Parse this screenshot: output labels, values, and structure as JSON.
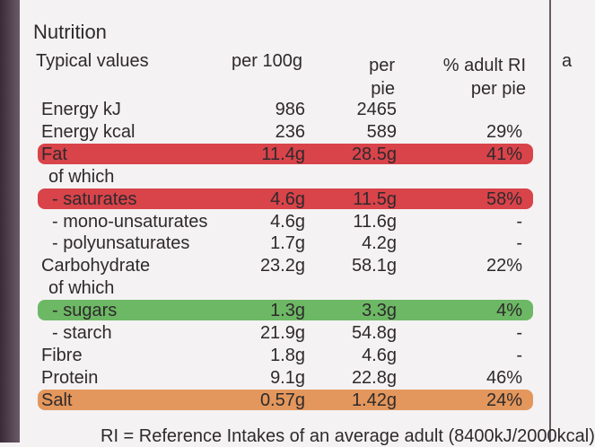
{
  "title": "Nutrition",
  "header": {
    "label": "Typical values",
    "per_100g": "per 100g",
    "per_pie": "per pie",
    "ri": "% adult RI per pie",
    "cut": "a"
  },
  "rows": [
    {
      "label": "Energy kJ",
      "per_100g": "986",
      "per_pie": "2465"
    },
    {
      "label": "Energy kcal",
      "per_100g": "236",
      "per_pie": "589",
      "ri": "29%"
    },
    {
      "label": "Fat",
      "per_100g": "11.4g",
      "per_pie": "28.5g",
      "ri": "41%",
      "highlight": "#d9434a"
    },
    {
      "label": "of which"
    },
    {
      "label": "- saturates",
      "per_100g": "4.6g",
      "per_pie": "11.5g",
      "ri": "58%",
      "highlight": "#d9434a"
    },
    {
      "label": "- mono-unsaturates",
      "per_100g": "4.6g",
      "per_pie": "11.6g",
      "ri": "-"
    },
    {
      "label": "- polyunsaturates",
      "per_100g": "1.7g",
      "per_pie": "4.2g",
      "ri": "-"
    },
    {
      "label": "Carbohydrate",
      "per_100g": "23.2g",
      "per_pie": "58.1g",
      "ri": "22%"
    },
    {
      "label": "of which"
    },
    {
      "label": "- sugars",
      "per_100g": "1.3g",
      "per_pie": "3.3g",
      "ri": "4%",
      "highlight": "#6db865"
    },
    {
      "label": "- starch",
      "per_100g": "21.9g",
      "per_pie": "54.8g",
      "ri": "-"
    },
    {
      "label": "Fibre",
      "per_100g": "1.8g",
      "per_pie": "4.6g",
      "ri": "-"
    },
    {
      "label": "Protein",
      "per_100g": "9.1g",
      "per_pie": "22.8g",
      "ri": "46%"
    },
    {
      "label": "Salt",
      "per_100g": "0.57g",
      "per_pie": "1.42g",
      "ri": "24%",
      "highlight": "#e3975c"
    }
  ],
  "footer": "RI = Reference Intakes of an average adult (8400kJ/2000kcal)"
}
